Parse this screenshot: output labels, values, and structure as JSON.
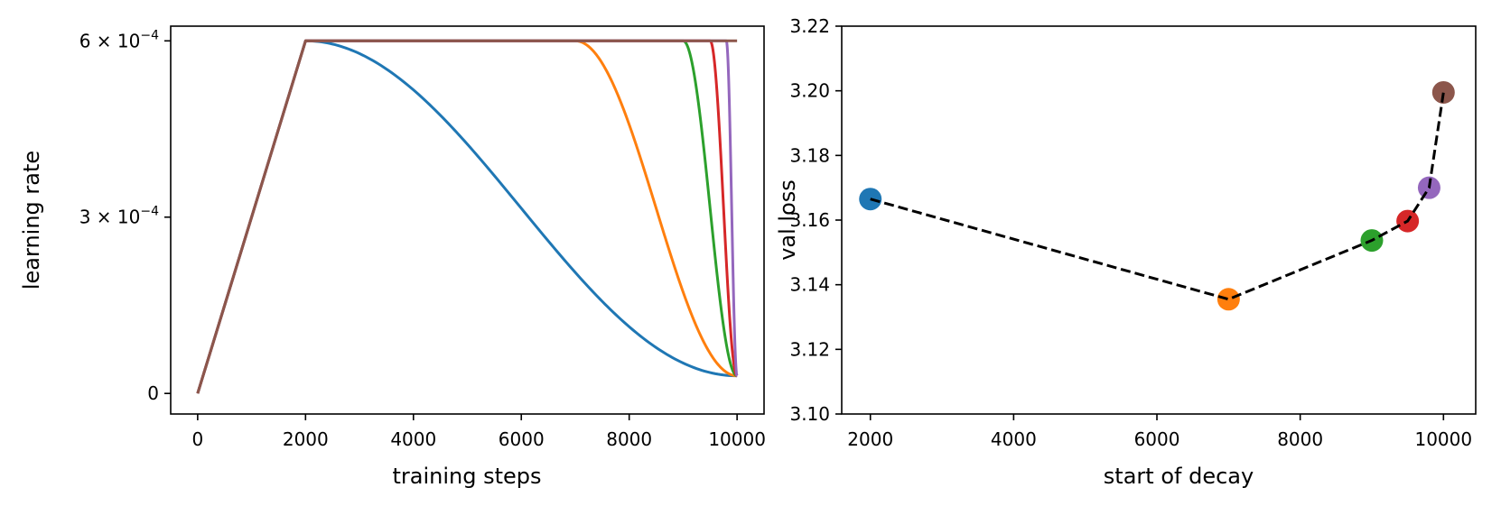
{
  "chart_data": [
    {
      "type": "line",
      "title": "",
      "xlabel": "training steps",
      "ylabel": "learning rate",
      "xlim": [
        -500,
        10500
      ],
      "ylim": [
        -3.5e-05,
        0.000625
      ],
      "xticks": [
        0,
        2000,
        4000,
        6000,
        8000,
        10000
      ],
      "xtick_labels": [
        "0",
        "2000",
        "4000",
        "6000",
        "8000",
        "10000"
      ],
      "yticks": [
        0,
        0.0003,
        0.0006
      ],
      "ytick_labels": [
        {
          "base": "0",
          "exp": ""
        },
        {
          "base": "3 × 10",
          "exp": "−4"
        },
        {
          "base": "6 × 10",
          "exp": "−4"
        }
      ],
      "grid": false,
      "schedule": {
        "warmup_steps": 2000,
        "total_steps": 10000,
        "peak_lr": 0.0006,
        "min_lr": 3e-05,
        "decay": "cosine"
      },
      "series": [
        {
          "decay_start": 2000,
          "color": "#1f77b4"
        },
        {
          "decay_start": 7000,
          "color": "#ff7f0e"
        },
        {
          "decay_start": 9000,
          "color": "#2ca02c"
        },
        {
          "decay_start": 9500,
          "color": "#d62728"
        },
        {
          "decay_start": 9800,
          "color": "#9467bd"
        },
        {
          "decay_start": 10000,
          "color": "#8c564b"
        }
      ]
    },
    {
      "type": "scatter",
      "title": "",
      "xlabel": "start of decay",
      "ylabel": "val loss",
      "xlim": [
        1600,
        10450
      ],
      "ylim": [
        3.1,
        3.22
      ],
      "xticks": [
        2000,
        4000,
        6000,
        8000,
        10000
      ],
      "xtick_labels": [
        "2000",
        "4000",
        "6000",
        "8000",
        "10000"
      ],
      "yticks": [
        3.1,
        3.12,
        3.14,
        3.16,
        3.18,
        3.2,
        3.22
      ],
      "ytick_labels": [
        "3.10",
        "3.12",
        "3.14",
        "3.16",
        "3.18",
        "3.20",
        "3.22"
      ],
      "grid": false,
      "connector": {
        "style": "dashed",
        "color": "#000000"
      },
      "points": [
        {
          "x": 2000,
          "y": 3.1665,
          "color": "#1f77b4"
        },
        {
          "x": 7000,
          "y": 3.1355,
          "color": "#ff7f0e"
        },
        {
          "x": 9000,
          "y": 3.1537,
          "color": "#2ca02c"
        },
        {
          "x": 9500,
          "y": 3.1597,
          "color": "#d62728"
        },
        {
          "x": 9800,
          "y": 3.17,
          "color": "#9467bd"
        },
        {
          "x": 10000,
          "y": 3.1995,
          "color": "#8c564b"
        }
      ]
    }
  ]
}
